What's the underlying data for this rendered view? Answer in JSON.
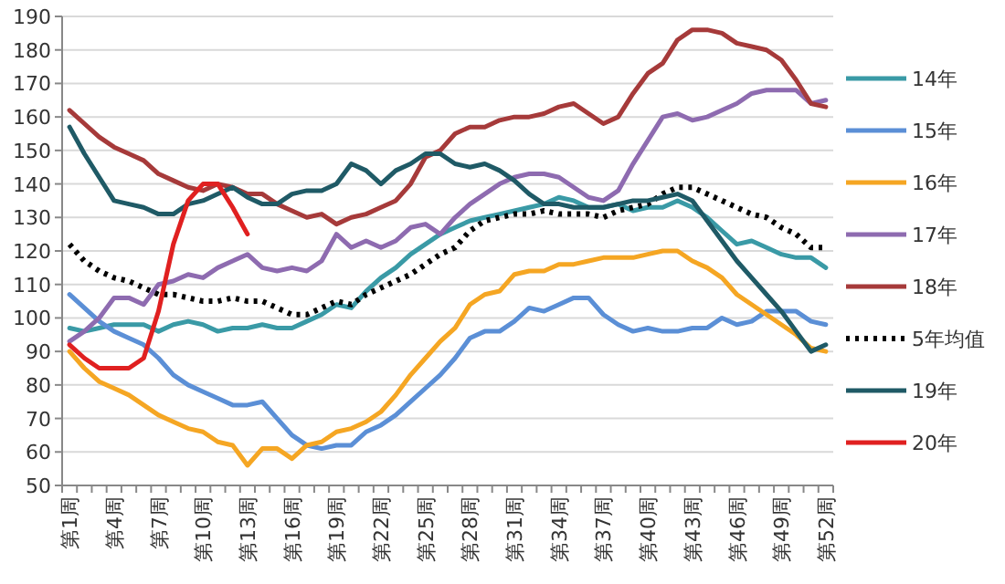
{
  "chart_data": {
    "type": "line",
    "ylim": [
      50,
      190
    ],
    "yticks": [
      50,
      60,
      70,
      80,
      90,
      100,
      110,
      120,
      130,
      140,
      150,
      160,
      170,
      180,
      190
    ],
    "grid": "y",
    "legend": "right",
    "categories": [
      "第1周",
      null,
      null,
      "第4周",
      null,
      null,
      "第7周",
      null,
      null,
      "第10周",
      null,
      null,
      "第13周",
      null,
      null,
      "第16周",
      null,
      null,
      "第19周",
      null,
      null,
      "第22周",
      null,
      null,
      "第25周",
      null,
      null,
      "第28周",
      null,
      null,
      "第31周",
      null,
      null,
      "第34周",
      null,
      null,
      "第37周",
      null,
      null,
      "第40周",
      null,
      null,
      "第43周",
      null,
      null,
      "第46周",
      null,
      null,
      "第49周",
      null,
      null,
      "第52周"
    ],
    "series": [
      {
        "name": "14年",
        "color": "#3a9aa6",
        "values": [
          97,
          96,
          97,
          98,
          98,
          98,
          96,
          98,
          99,
          98,
          96,
          97,
          97,
          98,
          97,
          97,
          99,
          101,
          104,
          103,
          108,
          112,
          115,
          119,
          122,
          125,
          127,
          129,
          130,
          131,
          132,
          133,
          134,
          136,
          135,
          133,
          133,
          134,
          132,
          133,
          133,
          135,
          133,
          130,
          126,
          122,
          123,
          121,
          119,
          118,
          118,
          115
        ]
      },
      {
        "name": "15年",
        "color": "#5b8fd6",
        "values": [
          107,
          103,
          99,
          96,
          94,
          92,
          88,
          83,
          80,
          78,
          76,
          74,
          74,
          75,
          70,
          65,
          62,
          61,
          62,
          62,
          66,
          68,
          71,
          75,
          79,
          83,
          88,
          94,
          96,
          96,
          99,
          103,
          102,
          104,
          106,
          106,
          101,
          98,
          96,
          97,
          96,
          96,
          97,
          97,
          100,
          98,
          99,
          102,
          102,
          102,
          99,
          98
        ]
      },
      {
        "name": "16年",
        "color": "#f5a623",
        "values": [
          90,
          85,
          81,
          79,
          77,
          74,
          71,
          69,
          67,
          66,
          63,
          62,
          56,
          61,
          61,
          58,
          62,
          63,
          66,
          67,
          69,
          72,
          77,
          83,
          88,
          93,
          97,
          104,
          107,
          108,
          113,
          114,
          114,
          116,
          116,
          117,
          118,
          118,
          118,
          119,
          120,
          120,
          117,
          115,
          112,
          107,
          104,
          101,
          98,
          95,
          91,
          90
        ]
      },
      {
        "name": "17年",
        "color": "#8e6bb0",
        "values": [
          93,
          96,
          100,
          106,
          106,
          104,
          110,
          111,
          113,
          112,
          115,
          117,
          119,
          115,
          114,
          115,
          114,
          117,
          125,
          121,
          123,
          121,
          123,
          127,
          128,
          125,
          130,
          134,
          137,
          140,
          142,
          143,
          143,
          142,
          139,
          136,
          135,
          138,
          146,
          153,
          160,
          161,
          159,
          160,
          162,
          164,
          167,
          168,
          168,
          168,
          164,
          165
        ]
      },
      {
        "name": "18年",
        "color": "#a63a3a",
        "values": [
          162,
          158,
          154,
          151,
          149,
          147,
          143,
          141,
          139,
          138,
          140,
          139,
          137,
          137,
          134,
          132,
          130,
          131,
          128,
          130,
          131,
          133,
          135,
          140,
          148,
          150,
          155,
          157,
          157,
          159,
          160,
          160,
          161,
          163,
          164,
          161,
          158,
          160,
          167,
          173,
          176,
          183,
          186,
          186,
          185,
          182,
          181,
          180,
          177,
          171,
          164,
          163
        ]
      },
      {
        "name": "5年均值",
        "color": "#000000",
        "line_style": "dotted",
        "values": [
          122,
          117,
          114,
          112,
          111,
          109,
          107,
          107,
          106,
          105,
          105,
          106,
          105,
          105,
          103,
          101,
          101,
          103,
          105,
          104,
          107,
          109,
          111,
          113,
          116,
          119,
          121,
          126,
          129,
          130,
          131,
          131,
          132,
          131,
          131,
          131,
          130,
          132,
          133,
          134,
          137,
          139,
          139,
          137,
          135,
          133,
          131,
          130,
          127,
          125,
          121,
          121
        ]
      },
      {
        "name": "19年",
        "color": "#1f5a66",
        "values": [
          157,
          149,
          142,
          135,
          134,
          133,
          131,
          131,
          134,
          135,
          137,
          139,
          136,
          134,
          134,
          137,
          138,
          138,
          140,
          146,
          144,
          140,
          144,
          146,
          149,
          149,
          146,
          145,
          146,
          144,
          141,
          137,
          134,
          134,
          133,
          133,
          133,
          134,
          135,
          135,
          136,
          137,
          135,
          129,
          123,
          117,
          112,
          107,
          102,
          96,
          90,
          92
        ]
      },
      {
        "name": "20年",
        "color": "#e02020",
        "values": [
          92,
          88,
          85,
          85,
          85,
          88,
          102,
          122,
          135,
          140,
          140,
          133,
          125,
          null,
          null,
          null,
          null,
          null,
          null,
          null,
          null,
          null,
          null,
          null,
          null,
          null,
          null,
          null,
          null,
          null,
          null,
          null,
          null,
          null,
          null,
          null,
          null,
          null,
          null,
          null,
          null,
          null,
          null,
          null,
          null,
          null,
          null,
          null,
          null,
          null,
          null,
          null
        ]
      }
    ]
  }
}
